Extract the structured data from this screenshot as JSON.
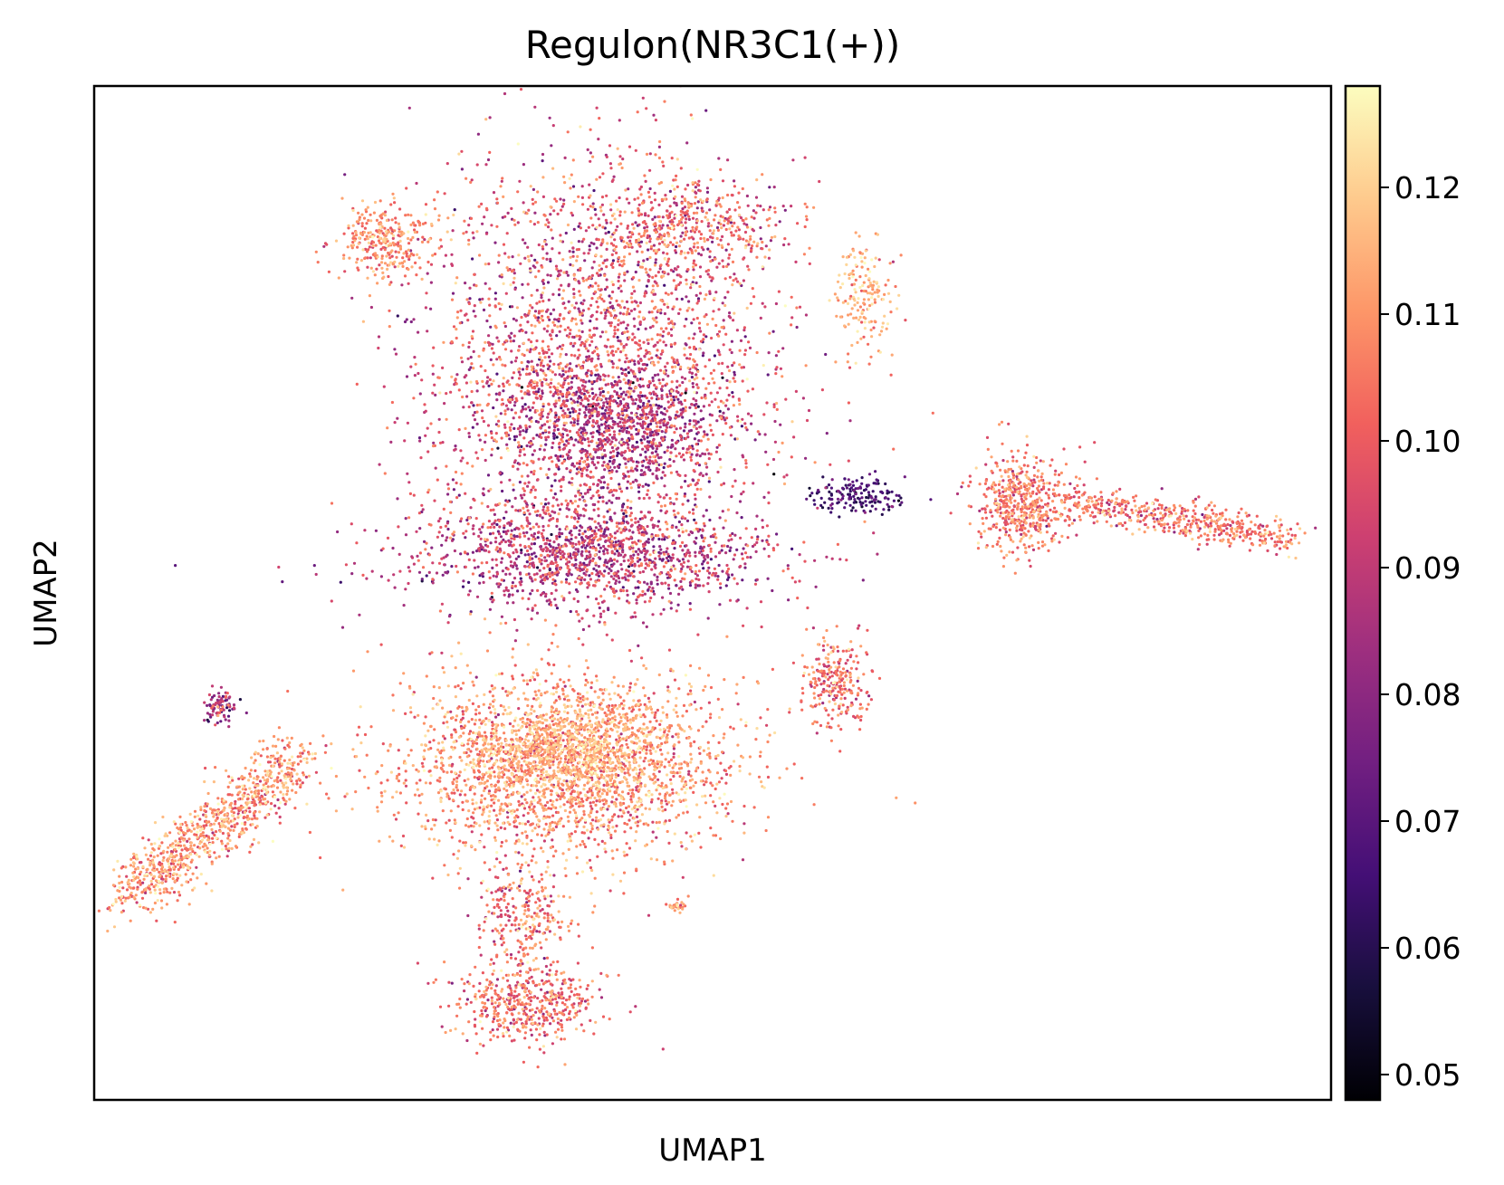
{
  "chart_data": {
    "type": "scatter",
    "title": "Regulon(NR3C1(+))",
    "xlabel": "UMAP1",
    "ylabel": "UMAP2",
    "x_ticks": [],
    "y_ticks": [],
    "grid": false,
    "legend": "none",
    "colormap": "magma",
    "colormap_stops": [
      "#000004",
      "#180f3d",
      "#440f76",
      "#721f81",
      "#9e2f7f",
      "#cd4071",
      "#f1605d",
      "#fd9668",
      "#feca8d",
      "#fcfdbf"
    ],
    "colorbar": {
      "label": "",
      "range": [
        0.048,
        0.128
      ],
      "ticks": [
        0.05,
        0.06,
        0.07,
        0.08,
        0.09,
        0.1,
        0.11,
        0.12
      ],
      "tick_labels": [
        "0.05",
        "0.06",
        "0.07",
        "0.08",
        "0.09",
        "0.10",
        "0.11",
        "0.12"
      ]
    },
    "xlim": [
      -11,
      17
    ],
    "ylim": [
      -11.5,
      12.5
    ],
    "clusters": [
      {
        "name": "upper-main",
        "x": 0.5,
        "y": 6.0,
        "sx": 3.6,
        "sy": 4.2,
        "n": 2600,
        "value_mean": 0.096,
        "value_sd": 0.012
      },
      {
        "name": "upper-core",
        "x": 0.8,
        "y": 4.4,
        "sx": 2.2,
        "sy": 1.4,
        "n": 900,
        "value_mean": 0.084,
        "value_sd": 0.01
      },
      {
        "name": "middle-band",
        "x": 0.2,
        "y": 1.4,
        "sx": 3.8,
        "sy": 1.2,
        "n": 1400,
        "value_mean": 0.088,
        "value_sd": 0.011
      },
      {
        "name": "upper-left-lobe",
        "x": -4.4,
        "y": 8.8,
        "sx": 1.0,
        "sy": 0.8,
        "n": 300,
        "value_mean": 0.108,
        "value_sd": 0.008
      },
      {
        "name": "top-lobe",
        "x": 2.4,
        "y": 9.2,
        "sx": 2.0,
        "sy": 1.0,
        "n": 450,
        "value_mean": 0.1,
        "value_sd": 0.011
      },
      {
        "name": "right-arm-upper",
        "x": 6.4,
        "y": 7.6,
        "sx": 0.6,
        "sy": 1.2,
        "n": 160,
        "value_mean": 0.114,
        "value_sd": 0.008
      },
      {
        "name": "right-dark-tip",
        "x": 6.3,
        "y": 2.8,
        "sx": 0.9,
        "sy": 0.4,
        "n": 160,
        "value_mean": 0.066,
        "value_sd": 0.006
      },
      {
        "name": "lower-main",
        "x": -0.4,
        "y": -3.6,
        "sx": 3.6,
        "sy": 2.0,
        "n": 2300,
        "value_mean": 0.108,
        "value_sd": 0.009
      },
      {
        "name": "lower-core",
        "x": -0.2,
        "y": -3.2,
        "sx": 2.1,
        "sy": 1.1,
        "n": 800,
        "value_mean": 0.115,
        "value_sd": 0.006
      },
      {
        "name": "bottom-lobe",
        "x": -1.2,
        "y": -9.2,
        "sx": 1.5,
        "sy": 0.9,
        "n": 500,
        "value_mean": 0.102,
        "value_sd": 0.01
      },
      {
        "name": "bottom-stem",
        "x": -1.3,
        "y": -7.2,
        "sx": 0.9,
        "sy": 1.0,
        "n": 250,
        "value_mean": 0.104,
        "value_sd": 0.01
      },
      {
        "name": "right-small-arc",
        "x": 5.8,
        "y": -1.6,
        "sx": 0.7,
        "sy": 0.9,
        "n": 250,
        "value_mean": 0.102,
        "value_sd": 0.01
      },
      {
        "name": "tiny-upper-left",
        "x": -8.2,
        "y": -2.2,
        "sx": 0.35,
        "sy": 0.3,
        "n": 90,
        "value_mean": 0.086,
        "value_sd": 0.012
      },
      {
        "name": "far-right-cluster",
        "x": 10.0,
        "y": 2.6,
        "sx": 1.0,
        "sy": 1.1,
        "n": 520,
        "value_mean": 0.104,
        "value_sd": 0.009
      },
      {
        "name": "right-dot",
        "x": 2.2,
        "y": -6.9,
        "sx": 0.25,
        "sy": 0.15,
        "n": 25,
        "value_mean": 0.11,
        "value_sd": 0.006
      }
    ],
    "trails": [
      {
        "name": "lower-left-arm",
        "from": [
          -10.3,
          -6.7
        ],
        "to": [
          -6.3,
          -3.4
        ],
        "spread": 0.35,
        "n": 900,
        "value_mean": 0.108,
        "value_sd": 0.01
      },
      {
        "name": "far-right-tail",
        "from": [
          11.0,
          2.7
        ],
        "to": [
          16.1,
          1.8
        ],
        "spread": 0.22,
        "n": 520,
        "value_mean": 0.104,
        "value_sd": 0.009
      }
    ]
  }
}
